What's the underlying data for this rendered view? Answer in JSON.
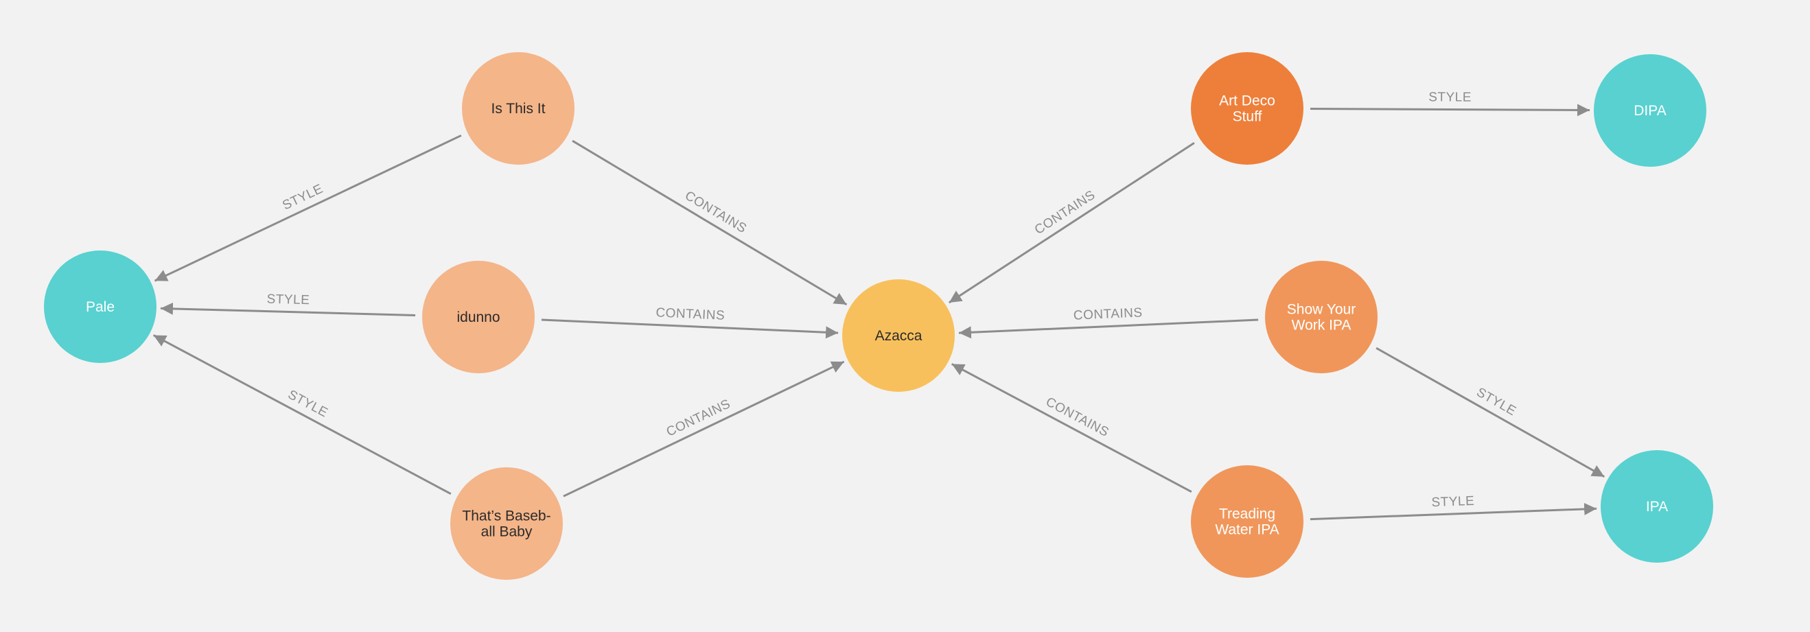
{
  "colors": {
    "background": "#f2f2f2",
    "edge": "#8c8c8c",
    "edge_label": "#8c8c8c",
    "style_node": "#58d1d0",
    "ingredient_node": "#f8c05c",
    "beer_light": "#f4b589",
    "beer_medium": "#f0965a",
    "beer_dark": "#ed7f3a",
    "text_dark": "#2b2b2b",
    "text_light": "#ffffff"
  },
  "nodes": [
    {
      "id": "pale",
      "lines": [
        "Pale"
      ],
      "type": "style"
    },
    {
      "id": "is_this_it",
      "lines": [
        "Is This It"
      ],
      "type": "beer_light"
    },
    {
      "id": "idunno",
      "lines": [
        "idunno"
      ],
      "type": "beer_light"
    },
    {
      "id": "thats_baseball_baby",
      "lines": [
        "That’s Baseb-",
        "all Baby"
      ],
      "type": "beer_light"
    },
    {
      "id": "azacca",
      "lines": [
        "Azacca"
      ],
      "type": "ingredient"
    },
    {
      "id": "art_deco_stuff",
      "lines": [
        "Art Deco",
        "Stuff"
      ],
      "type": "beer_dark"
    },
    {
      "id": "show_your_work_ipa",
      "lines": [
        "Show Your",
        "Work IPA"
      ],
      "type": "beer_medium"
    },
    {
      "id": "treading_water_ipa",
      "lines": [
        "Treading",
        "Water IPA"
      ],
      "type": "beer_medium"
    },
    {
      "id": "dipa",
      "lines": [
        "DIPA"
      ],
      "type": "style"
    },
    {
      "id": "ipa",
      "lines": [
        "IPA"
      ],
      "type": "style"
    }
  ],
  "edges": [
    {
      "from": "is_this_it",
      "to": "pale",
      "label": "STYLE"
    },
    {
      "from": "idunno",
      "to": "pale",
      "label": "STYLE"
    },
    {
      "from": "thats_baseball_baby",
      "to": "pale",
      "label": "STYLE"
    },
    {
      "from": "is_this_it",
      "to": "azacca",
      "label": "CONTAINS"
    },
    {
      "from": "idunno",
      "to": "azacca",
      "label": "CONTAINS"
    },
    {
      "from": "thats_baseball_baby",
      "to": "azacca",
      "label": "CONTAINS"
    },
    {
      "from": "art_deco_stuff",
      "to": "azacca",
      "label": "CONTAINS"
    },
    {
      "from": "show_your_work_ipa",
      "to": "azacca",
      "label": "CONTAINS"
    },
    {
      "from": "treading_water_ipa",
      "to": "azacca",
      "label": "CONTAINS"
    },
    {
      "from": "art_deco_stuff",
      "to": "dipa",
      "label": "STYLE"
    },
    {
      "from": "show_your_work_ipa",
      "to": "ipa",
      "label": "STYLE"
    },
    {
      "from": "treading_water_ipa",
      "to": "ipa",
      "label": "STYLE"
    }
  ]
}
